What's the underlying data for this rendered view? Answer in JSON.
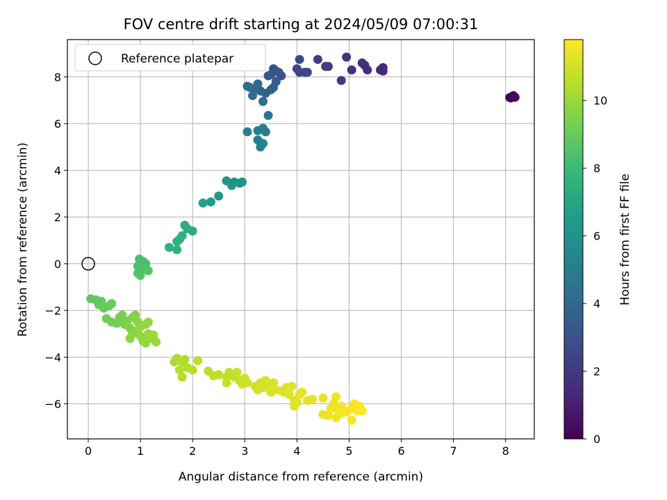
{
  "chart_data": {
    "type": "scatter",
    "title": "FOV centre drift starting at 2024/05/09 07:00:31",
    "xlabel": "Angular distance from reference (arcmin)",
    "ylabel": "Rotation from reference (arcmin)",
    "xlim": [
      -0.4,
      8.55
    ],
    "ylim": [
      -7.5,
      9.6
    ],
    "xticks": [
      "0",
      "1",
      "2",
      "3",
      "4",
      "5",
      "6",
      "7",
      "8"
    ],
    "yticks": [
      "−6",
      "−4",
      "−2",
      "0",
      "2",
      "4",
      "6",
      "8"
    ],
    "grid": true,
    "legend": {
      "placement": "upper-left",
      "label": "Reference platepar"
    },
    "reference_point": {
      "x": 0,
      "y": 0
    },
    "colorbar": {
      "label": "Hours from first FF file",
      "range": [
        0,
        11.8
      ],
      "ticks": [
        "0",
        "2",
        "4",
        "6",
        "8",
        "10"
      ],
      "colormap": [
        "#440154",
        "#482878",
        "#3e4989",
        "#31688e",
        "#26828e",
        "#1f9e89",
        "#35b779",
        "#6ece58",
        "#b5de2b",
        "#fde725"
      ]
    },
    "points": [
      {
        "x": 8.1,
        "y": 7.1,
        "c": 0.05
      },
      {
        "x": 8.15,
        "y": 7.2,
        "c": 0.1
      },
      {
        "x": 8.12,
        "y": 7.15,
        "c": 0.15
      },
      {
        "x": 8.08,
        "y": 7.12,
        "c": 0.2
      },
      {
        "x": 8.18,
        "y": 7.13,
        "c": 0.25
      },
      {
        "x": 5.65,
        "y": 8.4,
        "c": 1.3
      },
      {
        "x": 5.6,
        "y": 8.3,
        "c": 1.35
      },
      {
        "x": 5.65,
        "y": 8.25,
        "c": 1.4
      },
      {
        "x": 5.35,
        "y": 8.3,
        "c": 1.55
      },
      {
        "x": 5.3,
        "y": 8.5,
        "c": 1.5
      },
      {
        "x": 5.25,
        "y": 8.6,
        "c": 1.6
      },
      {
        "x": 5.05,
        "y": 8.3,
        "c": 1.7
      },
      {
        "x": 4.95,
        "y": 8.85,
        "c": 1.8
      },
      {
        "x": 4.85,
        "y": 7.85,
        "c": 1.9
      },
      {
        "x": 4.6,
        "y": 8.45,
        "c": 2.0
      },
      {
        "x": 4.55,
        "y": 8.45,
        "c": 2.1
      },
      {
        "x": 4.4,
        "y": 8.75,
        "c": 2.2
      },
      {
        "x": 4.15,
        "y": 8.2,
        "c": 2.3
      },
      {
        "x": 4.05,
        "y": 8.2,
        "c": 2.4
      },
      {
        "x": 4.0,
        "y": 8.35,
        "c": 2.5
      },
      {
        "x": 4.05,
        "y": 8.75,
        "c": 2.6
      },
      {
        "x": 4.2,
        "y": 8.2,
        "c": 2.45
      },
      {
        "x": 3.7,
        "y": 8.05,
        "c": 2.9
      },
      {
        "x": 3.65,
        "y": 8.2,
        "c": 3.0
      },
      {
        "x": 3.6,
        "y": 8.25,
        "c": 3.05
      },
      {
        "x": 3.55,
        "y": 8.35,
        "c": 3.1
      },
      {
        "x": 3.5,
        "y": 8.1,
        "c": 3.2
      },
      {
        "x": 3.45,
        "y": 8.05,
        "c": 3.3
      },
      {
        "x": 3.6,
        "y": 7.8,
        "c": 3.4
      },
      {
        "x": 3.55,
        "y": 7.55,
        "c": 3.5
      },
      {
        "x": 3.5,
        "y": 7.45,
        "c": 3.6
      },
      {
        "x": 3.4,
        "y": 7.3,
        "c": 3.7
      },
      {
        "x": 3.3,
        "y": 7.4,
        "c": 3.8
      },
      {
        "x": 3.25,
        "y": 7.7,
        "c": 3.9
      },
      {
        "x": 3.2,
        "y": 7.5,
        "c": 4.0
      },
      {
        "x": 3.1,
        "y": 7.55,
        "c": 4.1
      },
      {
        "x": 3.05,
        "y": 7.6,
        "c": 4.15
      },
      {
        "x": 3.15,
        "y": 7.2,
        "c": 4.2
      },
      {
        "x": 3.35,
        "y": 6.95,
        "c": 4.3
      },
      {
        "x": 3.45,
        "y": 6.35,
        "c": 4.6
      },
      {
        "x": 3.4,
        "y": 5.65,
        "c": 4.9
      },
      {
        "x": 3.35,
        "y": 5.8,
        "c": 5.0
      },
      {
        "x": 3.25,
        "y": 5.7,
        "c": 5.05
      },
      {
        "x": 3.05,
        "y": 5.65,
        "c": 5.1
      },
      {
        "x": 3.25,
        "y": 5.3,
        "c": 5.2
      },
      {
        "x": 3.35,
        "y": 5.15,
        "c": 5.3
      },
      {
        "x": 3.3,
        "y": 5.0,
        "c": 5.35
      },
      {
        "x": 2.95,
        "y": 3.5,
        "c": 6.0
      },
      {
        "x": 2.9,
        "y": 3.45,
        "c": 6.05
      },
      {
        "x": 2.8,
        "y": 3.5,
        "c": 6.1
      },
      {
        "x": 2.75,
        "y": 3.35,
        "c": 6.15
      },
      {
        "x": 2.65,
        "y": 3.55,
        "c": 6.2
      },
      {
        "x": 2.5,
        "y": 2.9,
        "c": 6.4
      },
      {
        "x": 2.35,
        "y": 2.65,
        "c": 6.6
      },
      {
        "x": 2.2,
        "y": 2.6,
        "c": 6.7
      },
      {
        "x": 2.0,
        "y": 1.4,
        "c": 7.3
      },
      {
        "x": 1.9,
        "y": 1.5,
        "c": 7.35
      },
      {
        "x": 1.85,
        "y": 1.65,
        "c": 7.4
      },
      {
        "x": 1.8,
        "y": 1.2,
        "c": 7.45
      },
      {
        "x": 1.75,
        "y": 1.05,
        "c": 7.5
      },
      {
        "x": 1.7,
        "y": 0.95,
        "c": 7.55
      },
      {
        "x": 1.7,
        "y": 0.6,
        "c": 7.6
      },
      {
        "x": 1.55,
        "y": 0.7,
        "c": 7.65
      },
      {
        "x": 1.1,
        "y": 0.0,
        "c": 8.2
      },
      {
        "x": 1.05,
        "y": 0.1,
        "c": 8.25
      },
      {
        "x": 1.0,
        "y": 0.05,
        "c": 8.3
      },
      {
        "x": 0.98,
        "y": 0.2,
        "c": 8.35
      },
      {
        "x": 0.95,
        "y": -0.1,
        "c": 8.4
      },
      {
        "x": 1.0,
        "y": -0.25,
        "c": 8.45
      },
      {
        "x": 1.1,
        "y": -0.2,
        "c": 8.5
      },
      {
        "x": 1.15,
        "y": -0.3,
        "c": 8.55
      },
      {
        "x": 1.0,
        "y": -0.5,
        "c": 8.6
      },
      {
        "x": 0.95,
        "y": -0.4,
        "c": 8.5
      },
      {
        "x": 0.05,
        "y": -1.5,
        "c": 8.8
      },
      {
        "x": 0.15,
        "y": -1.55,
        "c": 8.85
      },
      {
        "x": 0.25,
        "y": -1.6,
        "c": 8.9
      },
      {
        "x": 0.2,
        "y": -1.75,
        "c": 8.95
      },
      {
        "x": 0.3,
        "y": -1.9,
        "c": 9.0
      },
      {
        "x": 0.4,
        "y": -1.8,
        "c": 9.05
      },
      {
        "x": 0.45,
        "y": -1.7,
        "c": 9.1
      },
      {
        "x": 0.35,
        "y": -2.35,
        "c": 9.15
      },
      {
        "x": 0.45,
        "y": -2.5,
        "c": 9.2
      },
      {
        "x": 0.55,
        "y": -2.55,
        "c": 9.25
      },
      {
        "x": 0.6,
        "y": -2.3,
        "c": 9.3
      },
      {
        "x": 0.65,
        "y": -2.2,
        "c": 9.35
      },
      {
        "x": 0.7,
        "y": -2.6,
        "c": 9.4
      },
      {
        "x": 0.75,
        "y": -2.45,
        "c": 9.45
      },
      {
        "x": 0.8,
        "y": -2.75,
        "c": 9.5
      },
      {
        "x": 0.85,
        "y": -2.3,
        "c": 9.55
      },
      {
        "x": 0.9,
        "y": -2.2,
        "c": 9.6
      },
      {
        "x": 0.95,
        "y": -2.5,
        "c": 9.6
      },
      {
        "x": 0.85,
        "y": -3.0,
        "c": 9.65
      },
      {
        "x": 0.9,
        "y": -2.9,
        "c": 9.7
      },
      {
        "x": 0.95,
        "y": -2.85,
        "c": 9.7
      },
      {
        "x": 0.8,
        "y": -3.2,
        "c": 9.75
      },
      {
        "x": 1.0,
        "y": -3.1,
        "c": 9.8
      },
      {
        "x": 1.05,
        "y": -3.3,
        "c": 9.85
      },
      {
        "x": 1.1,
        "y": -3.4,
        "c": 9.9
      },
      {
        "x": 1.15,
        "y": -3.0,
        "c": 9.9
      },
      {
        "x": 1.2,
        "y": -3.2,
        "c": 9.95
      },
      {
        "x": 1.25,
        "y": -3.05,
        "c": 10.0
      },
      {
        "x": 1.3,
        "y": -3.35,
        "c": 10.0
      },
      {
        "x": 1.1,
        "y": -2.6,
        "c": 9.85
      },
      {
        "x": 1.15,
        "y": -2.5,
        "c": 9.9
      },
      {
        "x": 1.0,
        "y": -2.7,
        "c": 9.8
      },
      {
        "x": 1.65,
        "y": -4.2,
        "c": 10.3
      },
      {
        "x": 1.7,
        "y": -4.05,
        "c": 10.35
      },
      {
        "x": 1.8,
        "y": -4.2,
        "c": 10.4
      },
      {
        "x": 1.85,
        "y": -4.1,
        "c": 10.4
      },
      {
        "x": 1.9,
        "y": -4.45,
        "c": 10.45
      },
      {
        "x": 1.75,
        "y": -4.55,
        "c": 10.5
      },
      {
        "x": 1.8,
        "y": -4.85,
        "c": 10.5
      },
      {
        "x": 2.0,
        "y": -4.55,
        "c": 10.55
      },
      {
        "x": 2.1,
        "y": -4.15,
        "c": 10.6
      },
      {
        "x": 2.3,
        "y": -4.6,
        "c": 10.65
      },
      {
        "x": 2.4,
        "y": -4.8,
        "c": 10.7
      },
      {
        "x": 2.5,
        "y": -4.75,
        "c": 10.7
      },
      {
        "x": 2.65,
        "y": -4.85,
        "c": 10.75
      },
      {
        "x": 2.7,
        "y": -4.65,
        "c": 10.75
      },
      {
        "x": 2.65,
        "y": -5.1,
        "c": 10.8
      },
      {
        "x": 2.8,
        "y": -4.85,
        "c": 10.8
      },
      {
        "x": 2.85,
        "y": -4.65,
        "c": 10.85
      },
      {
        "x": 2.9,
        "y": -5.0,
        "c": 10.85
      },
      {
        "x": 2.95,
        "y": -5.15,
        "c": 10.9
      },
      {
        "x": 3.0,
        "y": -4.9,
        "c": 10.9
      },
      {
        "x": 3.05,
        "y": -5.1,
        "c": 10.95
      },
      {
        "x": 3.2,
        "y": -5.25,
        "c": 11.0
      },
      {
        "x": 3.25,
        "y": -5.4,
        "c": 11.0
      },
      {
        "x": 3.3,
        "y": -5.1,
        "c": 11.0
      },
      {
        "x": 3.35,
        "y": -5.3,
        "c": 11.05
      },
      {
        "x": 3.4,
        "y": -5.0,
        "c": 11.05
      },
      {
        "x": 3.45,
        "y": -5.3,
        "c": 11.1
      },
      {
        "x": 3.5,
        "y": -5.5,
        "c": 11.1
      },
      {
        "x": 3.55,
        "y": -5.1,
        "c": 11.1
      },
      {
        "x": 3.6,
        "y": -5.4,
        "c": 11.15
      },
      {
        "x": 3.7,
        "y": -5.45,
        "c": 11.15
      },
      {
        "x": 3.75,
        "y": -5.5,
        "c": 11.2
      },
      {
        "x": 3.8,
        "y": -5.3,
        "c": 11.2
      },
      {
        "x": 3.85,
        "y": -5.6,
        "c": 11.2
      },
      {
        "x": 3.9,
        "y": -5.25,
        "c": 11.25
      },
      {
        "x": 3.95,
        "y": -5.85,
        "c": 11.25
      },
      {
        "x": 3.95,
        "y": -6.1,
        "c": 11.3
      },
      {
        "x": 4.05,
        "y": -5.6,
        "c": 11.3
      },
      {
        "x": 4.0,
        "y": -5.95,
        "c": 11.3
      },
      {
        "x": 4.1,
        "y": -5.5,
        "c": 11.35
      },
      {
        "x": 4.2,
        "y": -5.85,
        "c": 11.35
      },
      {
        "x": 4.3,
        "y": -5.8,
        "c": 11.4
      },
      {
        "x": 4.5,
        "y": -5.75,
        "c": 11.4
      },
      {
        "x": 4.5,
        "y": -6.45,
        "c": 11.45
      },
      {
        "x": 4.6,
        "y": -6.5,
        "c": 11.45
      },
      {
        "x": 4.65,
        "y": -6.2,
        "c": 11.5
      },
      {
        "x": 4.7,
        "y": -6.0,
        "c": 11.5
      },
      {
        "x": 4.75,
        "y": -5.7,
        "c": 11.5
      },
      {
        "x": 4.8,
        "y": -6.3,
        "c": 11.55
      },
      {
        "x": 4.75,
        "y": -6.6,
        "c": 11.55
      },
      {
        "x": 4.85,
        "y": -6.4,
        "c": 11.6
      },
      {
        "x": 4.85,
        "y": -6.1,
        "c": 11.6
      },
      {
        "x": 4.9,
        "y": -6.25,
        "c": 11.6
      },
      {
        "x": 4.95,
        "y": -6.35,
        "c": 11.65
      },
      {
        "x": 5.05,
        "y": -6.7,
        "c": 11.65
      },
      {
        "x": 5.05,
        "y": -6.2,
        "c": 11.7
      },
      {
        "x": 5.1,
        "y": -6.0,
        "c": 11.7
      },
      {
        "x": 5.15,
        "y": -6.3,
        "c": 11.75
      },
      {
        "x": 5.2,
        "y": -6.1,
        "c": 11.75
      },
      {
        "x": 5.25,
        "y": -6.3,
        "c": 11.8
      }
    ]
  }
}
